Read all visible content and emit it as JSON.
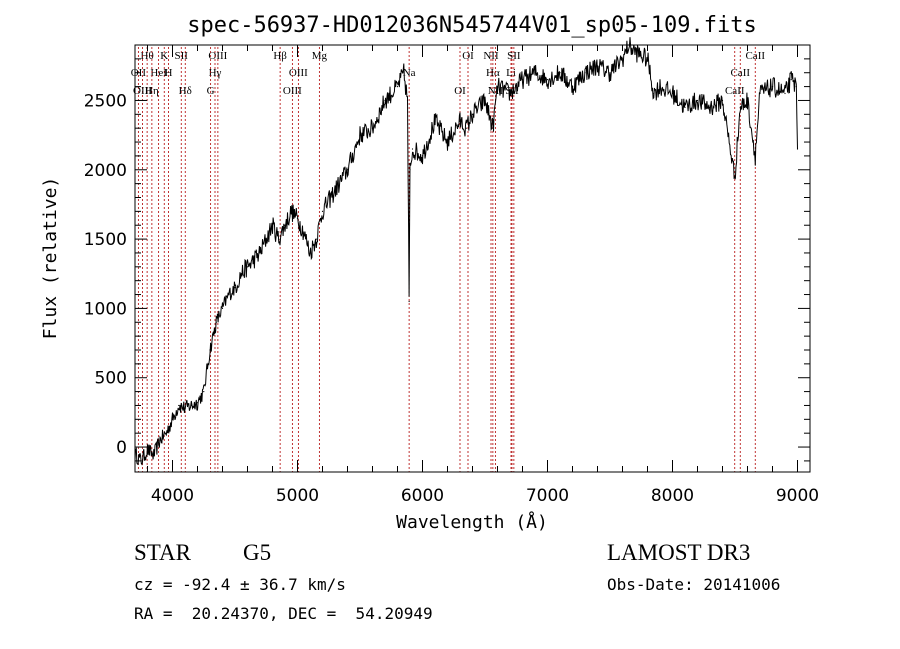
{
  "chart_data": {
    "type": "line",
    "title": "spec-56937-HD012036N545744V01_sp05-109.fits",
    "xlabel": "Wavelength (Å)",
    "ylabel": "Flux (relative)",
    "xlim": [
      3700,
      9100
    ],
    "ylim": [
      -180,
      2900
    ],
    "xticks": [
      4000,
      5000,
      6000,
      7000,
      8000,
      9000
    ],
    "yticks": [
      0,
      500,
      1000,
      1500,
      2000,
      2500
    ],
    "series": [
      {
        "name": "flux",
        "x": [
          3700,
          3750,
          3800,
          3850,
          3900,
          3950,
          4000,
          4050,
          4100,
          4150,
          4200,
          4250,
          4300,
          4350,
          4400,
          4450,
          4500,
          4550,
          4600,
          4650,
          4700,
          4750,
          4800,
          4850,
          4900,
          4950,
          5000,
          5050,
          5100,
          5150,
          5200,
          5300,
          5400,
          5500,
          5600,
          5700,
          5800,
          5850,
          5880,
          5893,
          5900,
          5920,
          6000,
          6100,
          6200,
          6300,
          6350,
          6400,
          6500,
          6563,
          6600,
          6700,
          6800,
          6900,
          7000,
          7100,
          7200,
          7300,
          7400,
          7500,
          7600,
          7650,
          7700,
          7800,
          7850,
          7900,
          8000,
          8100,
          8200,
          8300,
          8400,
          8498,
          8542,
          8600,
          8662,
          8700,
          8800,
          8900,
          8950,
          8990,
          9000
        ],
        "y": [
          -50,
          -100,
          -20,
          -60,
          50,
          100,
          200,
          300,
          280,
          300,
          320,
          400,
          700,
          900,
          1000,
          1100,
          1150,
          1250,
          1300,
          1350,
          1400,
          1500,
          1600,
          1500,
          1600,
          1700,
          1650,
          1550,
          1400,
          1500,
          1700,
          1850,
          2000,
          2250,
          2300,
          2500,
          2600,
          2700,
          2500,
          1050,
          2000,
          2150,
          2100,
          2350,
          2200,
          2350,
          2300,
          2400,
          2500,
          2300,
          2600,
          2550,
          2650,
          2700,
          2650,
          2700,
          2600,
          2700,
          2750,
          2700,
          2800,
          2900,
          2850,
          2800,
          2550,
          2600,
          2550,
          2450,
          2500,
          2450,
          2500,
          1950,
          2450,
          2500,
          2100,
          2550,
          2600,
          2550,
          2650,
          2600,
          2150
        ]
      }
    ],
    "line_marks": [
      {
        "label": "Hθ",
        "x": 3797
      },
      {
        "label": "OII",
        "x": 3727
      },
      {
        "label": "OIII",
        "x": 3760
      },
      {
        "label": "K",
        "x": 3934
      },
      {
        "label": "HeI",
        "x": 3889
      },
      {
        "label": "Hη",
        "x": 3835
      },
      {
        "label": "SII",
        "x": 4070
      },
      {
        "label": "H",
        "x": 3968
      },
      {
        "label": "Hδ",
        "x": 4102
      },
      {
        "label": "OIII",
        "x": 4363
      },
      {
        "label": "Hγ",
        "x": 4340
      },
      {
        "label": "G",
        "x": 4305
      },
      {
        "label": "Hβ",
        "x": 4861
      },
      {
        "label": "OIII",
        "x": 5007
      },
      {
        "label": "OIII",
        "x": 4959
      },
      {
        "label": "Mg",
        "x": 5175
      },
      {
        "label": "Na",
        "x": 5893
      },
      {
        "label": "OI",
        "x": 6300
      },
      {
        "label": "OI",
        "x": 6364
      },
      {
        "label": "Hα",
        "x": 6563
      },
      {
        "label": "SII",
        "x": 6716
      },
      {
        "label": "NII",
        "x": 6548
      },
      {
        "label": "Li",
        "x": 6708
      },
      {
        "label": "NII",
        "x": 6583
      },
      {
        "label": "SII",
        "x": 6731
      },
      {
        "label": "CaII",
        "x": 8542
      },
      {
        "label": "CaII",
        "x": 8498
      },
      {
        "label": "CaII",
        "x": 8662
      }
    ]
  },
  "info": {
    "class": "STAR",
    "subclass": "G5",
    "survey": "LAMOST DR3",
    "cz": "cz = -92.4 ± 36.7 km/s",
    "obs_date": "Obs-Date: 20141006",
    "radec": "RA =  20.24370, DEC =  54.20949"
  }
}
